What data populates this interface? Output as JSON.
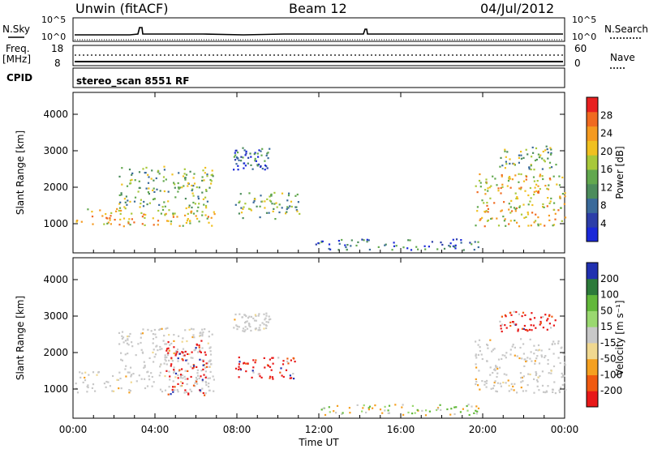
{
  "header": {
    "station": "Unwin (fitACF)",
    "beam": "Beam 12",
    "date": "04/Jul/2012"
  },
  "panels": {
    "nsky_label": "N.Sky",
    "nsky_ticks": [
      "10^5",
      "10^0"
    ],
    "nsearch_label": "N.Search",
    "freq_label_1": "Freq.",
    "freq_label_2": "[MHz]",
    "freq_ticks": [
      "18",
      "8"
    ],
    "nave_label": "Nave",
    "nave_ticks": [
      "60",
      "0"
    ],
    "cpid_label": "CPID",
    "cpid_text": "stereo_scan 8551 RF"
  },
  "chart_data": [
    {
      "type": "heatmap",
      "name": "power",
      "ylabel": "Slant Range [km]",
      "xlabel": "",
      "yticks": [
        "1000",
        "2000",
        "3000",
        "4000"
      ],
      "ylim": [
        200,
        4600
      ],
      "xlim": [
        0,
        24
      ],
      "colorbar_label": "Power [dB]",
      "colorbar_ticks": [
        "4",
        "8",
        "12",
        "16",
        "20",
        "24",
        "28"
      ],
      "colors": [
        "#1a28d8",
        "#2c3ea8",
        "#3a6a9a",
        "#4c8c5c",
        "#62a84e",
        "#a8c83a",
        "#f0c020",
        "#f59a20",
        "#f06a20",
        "#e82020"
      ],
      "regions": [
        {
          "t0": 0.1,
          "t1": 6.9,
          "r0": 950,
          "r1": 1450,
          "level": "high"
        },
        {
          "t0": 2.2,
          "t1": 6.8,
          "r0": 1450,
          "r1": 2600,
          "level": "mid"
        },
        {
          "t0": 7.8,
          "t1": 9.6,
          "r0": 2500,
          "r1": 3100,
          "level": "low"
        },
        {
          "t0": 7.9,
          "t1": 11.1,
          "r0": 1150,
          "r1": 1900,
          "level": "mid"
        },
        {
          "t0": 11.8,
          "t1": 20.0,
          "r0": 300,
          "r1": 600,
          "level": "low"
        },
        {
          "t0": 19.6,
          "t1": 24.0,
          "r0": 950,
          "r1": 2400,
          "level": "high"
        },
        {
          "t0": 20.8,
          "t1": 23.6,
          "r0": 2500,
          "r1": 3150,
          "level": "mid"
        }
      ]
    },
    {
      "type": "heatmap",
      "name": "velocity",
      "ylabel": "Slant Range [km]",
      "xlabel": "Time UT",
      "yticks": [
        "1000",
        "2000",
        "3000",
        "4000"
      ],
      "xticks": [
        "00:00",
        "04:00",
        "08:00",
        "12:00",
        "16:00",
        "20:00",
        "00:00"
      ],
      "ylim": [
        200,
        4600
      ],
      "xlim": [
        0,
        24
      ],
      "colorbar_label": "Velocity [m s⁻¹]",
      "colorbar_ticks": [
        "-200",
        "-100",
        "-50",
        "-15",
        "15",
        "50",
        "100",
        "200"
      ],
      "colors": [
        "#e81818",
        "#f05a10",
        "#f5a020",
        "#f0d890",
        "#c8c8c8",
        "#9ad870",
        "#62b83a",
        "#2c7a3a",
        "#2030b0"
      ],
      "regions": [
        {
          "t0": 0.1,
          "t1": 6.9,
          "r0": 900,
          "r1": 1500,
          "kind": "gray"
        },
        {
          "t0": 2.2,
          "t1": 6.8,
          "r0": 1500,
          "r1": 2700,
          "kind": "gray"
        },
        {
          "t0": 4.5,
          "t1": 6.5,
          "r0": 850,
          "r1": 2350,
          "kind": "red"
        },
        {
          "t0": 7.8,
          "t1": 9.6,
          "r0": 2600,
          "r1": 3100,
          "kind": "gray"
        },
        {
          "t0": 7.9,
          "t1": 10.8,
          "r0": 1250,
          "r1": 1900,
          "kind": "red"
        },
        {
          "t0": 11.8,
          "t1": 20.0,
          "r0": 300,
          "r1": 600,
          "kind": "mixed"
        },
        {
          "t0": 19.6,
          "t1": 24.0,
          "r0": 900,
          "r1": 2400,
          "kind": "gray"
        },
        {
          "t0": 20.8,
          "t1": 23.6,
          "r0": 2600,
          "r1": 3150,
          "kind": "red"
        }
      ]
    }
  ]
}
